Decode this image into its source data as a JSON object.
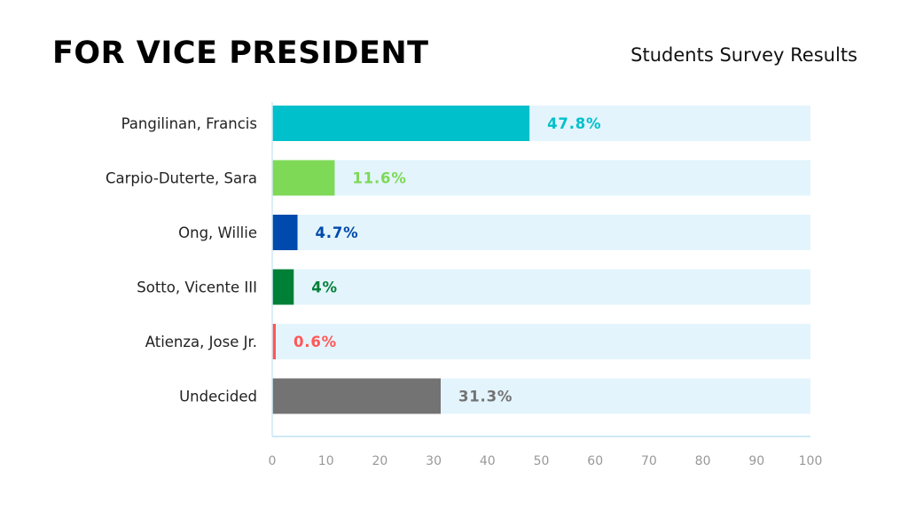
{
  "header": {
    "title": "FOR VICE PRESIDENT",
    "subtitle": "Students Survey Results"
  },
  "chart_data": {
    "type": "bar",
    "orientation": "horizontal",
    "categories": [
      "Pangilinan, Francis",
      "Carpio-Duterte, Sara",
      "Ong, Willie",
      "Sotto, Vicente III",
      "Atienza, Jose Jr.",
      "Undecided"
    ],
    "values": [
      47.8,
      11.6,
      4.7,
      4,
      0.6,
      31.3
    ],
    "value_labels": [
      "47.8%",
      "11.6%",
      "4.7%",
      "4%",
      "0.6%",
      "31.3%"
    ],
    "colors": [
      "#00c0cb",
      "#7ed957",
      "#004aad",
      "#008037",
      "#ff5757",
      "#737373"
    ],
    "track_color": "#e3f4fc",
    "xlim": [
      0,
      100
    ],
    "xticks": [
      0,
      10,
      20,
      30,
      40,
      50,
      60,
      70,
      80,
      90,
      100
    ],
    "grid": false,
    "xlabel": "",
    "ylabel": ""
  }
}
